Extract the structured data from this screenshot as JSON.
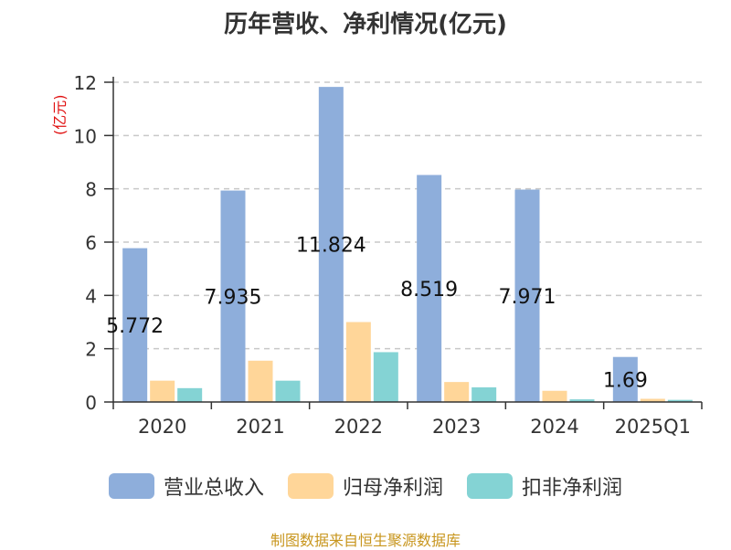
{
  "title": "历年营收、净利情况(亿元)",
  "unit_label": "(亿元)",
  "source": "制图数据来自恒生聚源数据库",
  "colors": {
    "revenue": "#8eaedb",
    "net_profit": "#ffd699",
    "deducted_profit": "#84d3d4",
    "grid": "#c8c8c8",
    "axis": "#333333",
    "unit_label": "#e01010",
    "source": "#c8961e"
  },
  "chart_data": {
    "type": "bar",
    "categories": [
      "2020",
      "2021",
      "2022",
      "2023",
      "2024",
      "2025Q1"
    ],
    "series": [
      {
        "name": "营业总收入",
        "values": [
          5.772,
          7.935,
          11.824,
          8.519,
          7.971,
          1.69
        ],
        "labels": [
          "5.772",
          "7.935",
          "11.824",
          "8.519",
          "7.971",
          "1.69"
        ]
      },
      {
        "name": "归母净利润",
        "values": [
          0.8,
          1.55,
          3.0,
          0.75,
          0.42,
          0.12
        ]
      },
      {
        "name": "扣非净利润",
        "values": [
          0.52,
          0.8,
          1.87,
          0.55,
          0.1,
          0.08
        ]
      }
    ],
    "yticks": [
      "0",
      "2",
      "4",
      "6",
      "8",
      "10",
      "12"
    ],
    "ylim": [
      0,
      12
    ],
    "grid": true,
    "legend": "bottom"
  }
}
